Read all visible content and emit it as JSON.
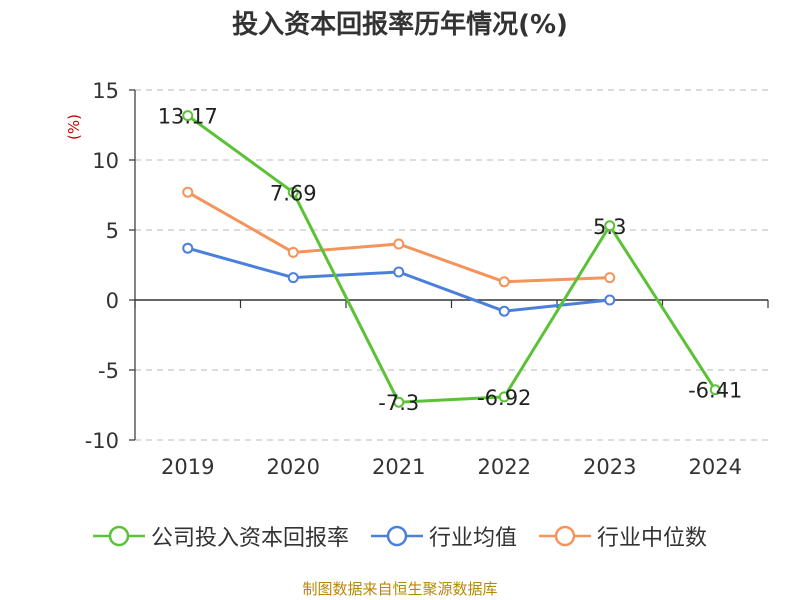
{
  "chart_data": {
    "type": "line",
    "title": "投入资本回报率历年情况(%)",
    "ylabel": "(%)",
    "xlabel": "",
    "categories": [
      "2019",
      "2020",
      "2021",
      "2022",
      "2023",
      "2024"
    ],
    "yticks": [
      "15",
      "10",
      "5",
      "0",
      "-5",
      "-10"
    ],
    "ylim": [
      -10,
      15
    ],
    "grid": "horizontal-dashed",
    "legend_position": "bottom",
    "series": [
      {
        "name": "公司投入资本回报率",
        "color": "#5bc236",
        "values": [
          13.17,
          7.69,
          -7.3,
          -6.92,
          5.3,
          -6.41
        ],
        "labels": [
          "13.17",
          "7.69",
          "-7.3",
          "-6.92",
          "5.3",
          "-6.41"
        ]
      },
      {
        "name": "行业均值",
        "color": "#4a7fdc",
        "values": [
          3.7,
          1.6,
          2.0,
          -0.8,
          0.0,
          null
        ]
      },
      {
        "name": "行业中位数",
        "color": "#f4935a",
        "values": [
          7.7,
          3.4,
          4.0,
          1.3,
          1.6,
          null
        ]
      }
    ]
  },
  "ylabel_color": "#cc0000",
  "source": "制图数据来自恒生聚源数据库"
}
